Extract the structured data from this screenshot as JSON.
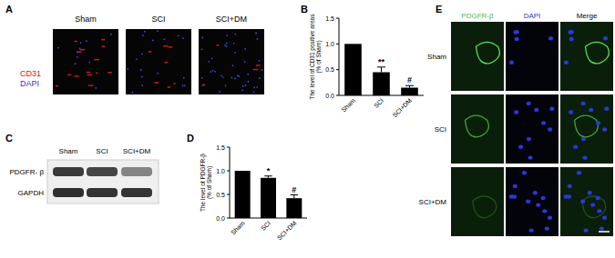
{
  "chart_data": [
    {
      "type": "bar",
      "title": "B",
      "y_label": "The level of CD31 positive areas (% of Sham)",
      "categories": [
        "Sham",
        "SCI",
        "SCI+DM"
      ],
      "values": [
        1.0,
        0.45,
        0.15
      ],
      "errors": [
        0,
        0.1,
        0.04
      ],
      "significance": [
        null,
        "**",
        "#"
      ],
      "color": "#000000",
      "ylim": [
        0,
        1.5
      ],
      "yticks": [
        {
          "value": 0,
          "label": "0.0"
        },
        {
          "value": 0.5,
          "label": "0.5"
        },
        {
          "value": 1,
          "label": "1.0"
        },
        {
          "value": 1.5,
          "label": "1.5"
        }
      ]
    },
    {
      "type": "bar",
      "title": "D",
      "y_label": "The level of PDGFR-β (% of Sham)",
      "categories": [
        "Sham",
        "SCI",
        "SCI+DM"
      ],
      "values": [
        1.0,
        0.85,
        0.42
      ],
      "errors": [
        0,
        0.04,
        0.07
      ],
      "significance": [
        null,
        "*",
        "#"
      ],
      "color": "#000000",
      "ylim": [
        0,
        1.5
      ],
      "yticks": [
        {
          "value": 0,
          "label": "0.0"
        },
        {
          "value": 0.5,
          "label": "0.5"
        },
        {
          "value": 1,
          "label": "1.0"
        },
        {
          "value": 1.5,
          "label": "1.5"
        }
      ]
    }
  ],
  "panel_a": {
    "label": "A",
    "stains": [
      "CD31",
      "DAPI"
    ],
    "columns": [
      "Sham",
      "SCI",
      "SCI+DM"
    ]
  },
  "panel_c": {
    "label": "C",
    "lanes": [
      "Sham",
      "SCI",
      "SCI+DM"
    ],
    "rows": [
      "PDGFR- β",
      "GAPDH"
    ]
  },
  "panel_e": {
    "label": "E",
    "columns": [
      "PDGFR-β",
      "DAPI",
      "Merge"
    ],
    "rows": [
      "Sham",
      "SCI",
      "SCI+DM"
    ]
  }
}
